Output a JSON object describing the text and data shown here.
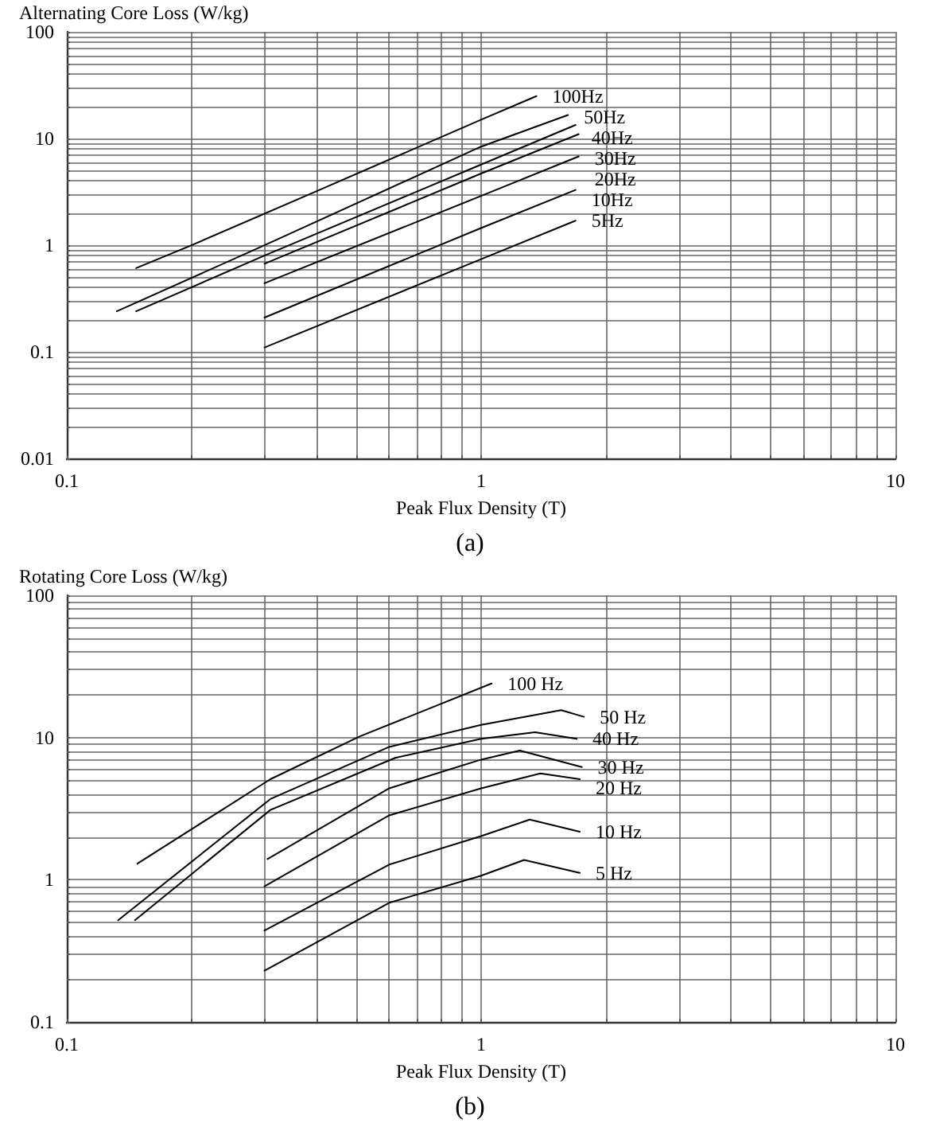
{
  "chart_data": [
    {
      "type": "line",
      "ylabel": "Alternating Core Loss (W/kg)",
      "xlabel": "Peak Flux Density (T)",
      "annotations": [
        "(a)"
      ],
      "log": "xy",
      "grid": true,
      "marker": "none",
      "line_style": "solid",
      "xlim": [
        0.1,
        10
      ],
      "ylim": [
        0.01,
        100
      ],
      "xticks": [
        0.1,
        {
          "value": 0.2,
          "label": null
        },
        {
          "value": 0.3,
          "label": null
        },
        {
          "value": 0.4,
          "label": null
        },
        {
          "value": 0.5,
          "label": null
        },
        {
          "value": 0.6,
          "label": null
        },
        {
          "value": 0.7,
          "label": null
        },
        {
          "value": 0.8,
          "label": null
        },
        {
          "value": 0.9,
          "label": null
        },
        1,
        {
          "value": 2,
          "label": null
        },
        {
          "value": 3,
          "label": null
        },
        {
          "value": 4,
          "label": null
        },
        {
          "value": 5,
          "label": null
        },
        {
          "value": 6,
          "label": null
        },
        {
          "value": 7,
          "label": null
        },
        {
          "value": 8,
          "label": null
        },
        {
          "value": 9,
          "label": null
        },
        10
      ],
      "yticks": [
        0.01,
        {
          "value": 0.02,
          "label": null
        },
        {
          "value": 0.03,
          "label": null
        },
        {
          "value": 0.04,
          "label": null
        },
        {
          "value": 0.05,
          "label": null
        },
        {
          "value": 0.06,
          "label": null
        },
        {
          "value": 0.07,
          "label": null
        },
        {
          "value": 0.08,
          "label": null
        },
        {
          "value": 0.09,
          "label": null
        },
        0.1,
        {
          "value": 0.2,
          "label": null
        },
        {
          "value": 0.3,
          "label": null
        },
        {
          "value": 0.4,
          "label": null
        },
        {
          "value": 0.5,
          "label": null
        },
        {
          "value": 0.6,
          "label": null
        },
        {
          "value": 0.7,
          "label": null
        },
        {
          "value": 0.8,
          "label": null
        },
        {
          "value": 0.9,
          "label": null
        },
        1,
        {
          "value": 2,
          "label": null
        },
        {
          "value": 3,
          "label": null
        },
        {
          "value": 4,
          "label": null
        },
        {
          "value": 5,
          "label": null
        },
        {
          "value": 6,
          "label": null
        },
        {
          "value": 7,
          "label": null
        },
        {
          "value": 8,
          "label": null
        },
        {
          "value": 9,
          "label": null
        },
        10,
        {
          "value": 20,
          "label": null
        },
        {
          "value": 30,
          "label": null
        },
        {
          "value": 40,
          "label": null
        },
        {
          "value": 50,
          "label": null
        },
        {
          "value": 60,
          "label": null
        },
        {
          "value": 70,
          "label": null
        },
        {
          "value": 80,
          "label": null
        },
        {
          "value": 90,
          "label": null
        },
        100
      ],
      "series": [
        {
          "name": "100Hz",
          "color": "#000000",
          "x": [
            0.147,
            0.2,
            0.4,
            1,
            1.36
          ],
          "values": [
            0.61,
            1,
            3.2,
            15,
            25
          ]
        },
        {
          "name": "50Hz",
          "color": "#000000",
          "x": [
            0.132,
            0.3,
            1,
            1.62
          ],
          "values": [
            0.24,
            1,
            8.4,
            16.6
          ]
        },
        {
          "name": "40Hz",
          "color": "#000000",
          "x": [
            0.147,
            0.3,
            1,
            1.69
          ],
          "values": [
            0.24,
            0.8,
            5.7,
            13.4
          ]
        },
        {
          "name": "30Hz",
          "color": "#000000",
          "x": [
            0.3,
            1,
            1.72
          ],
          "values": [
            0.67,
            4.7,
            11
          ]
        },
        {
          "name": "20Hz",
          "color": "#000000",
          "x": [
            0.3,
            1,
            1.72
          ],
          "values": [
            0.44,
            2.9,
            6.8
          ]
        },
        {
          "name": "10Hz",
          "color": "#000000",
          "x": [
            0.3,
            1,
            1.69
          ],
          "values": [
            0.21,
            1.45,
            3.3
          ]
        },
        {
          "name": "5Hz",
          "color": "#000000",
          "x": [
            0.3,
            1,
            1.69
          ],
          "values": [
            0.11,
            0.74,
            1.7
          ]
        }
      ]
    },
    {
      "type": "line",
      "ylabel": "Rotating Core Loss (W/kg)",
      "xlabel": "Peak Flux Density (T)",
      "annotations": [
        "(b)"
      ],
      "log": "xy",
      "grid": true,
      "marker": "none",
      "line_style": "solid",
      "xlim": [
        0.1,
        10
      ],
      "ylim": [
        0.1,
        100
      ],
      "xticks": [
        0.1,
        {
          "value": 0.2,
          "label": null
        },
        {
          "value": 0.3,
          "label": null
        },
        {
          "value": 0.4,
          "label": null
        },
        {
          "value": 0.5,
          "label": null
        },
        {
          "value": 0.6,
          "label": null
        },
        {
          "value": 0.7,
          "label": null
        },
        {
          "value": 0.8,
          "label": null
        },
        {
          "value": 0.9,
          "label": null
        },
        1,
        {
          "value": 2,
          "label": null
        },
        {
          "value": 3,
          "label": null
        },
        {
          "value": 4,
          "label": null
        },
        {
          "value": 5,
          "label": null
        },
        {
          "value": 6,
          "label": null
        },
        {
          "value": 7,
          "label": null
        },
        {
          "value": 8,
          "label": null
        },
        {
          "value": 9,
          "label": null
        },
        10
      ],
      "yticks": [
        0.1,
        {
          "value": 0.2,
          "label": null
        },
        {
          "value": 0.3,
          "label": null
        },
        {
          "value": 0.4,
          "label": null
        },
        {
          "value": 0.5,
          "label": null
        },
        {
          "value": 0.6,
          "label": null
        },
        {
          "value": 0.7,
          "label": null
        },
        {
          "value": 0.8,
          "label": null
        },
        {
          "value": 0.9,
          "label": null
        },
        1,
        {
          "value": 2,
          "label": null
        },
        {
          "value": 3,
          "label": null
        },
        {
          "value": 4,
          "label": null
        },
        {
          "value": 5,
          "label": null
        },
        {
          "value": 6,
          "label": null
        },
        {
          "value": 7,
          "label": null
        },
        {
          "value": 8,
          "label": null
        },
        {
          "value": 9,
          "label": null
        },
        10,
        {
          "value": 20,
          "label": null
        },
        {
          "value": 30,
          "label": null
        },
        {
          "value": 40,
          "label": null
        },
        {
          "value": 50,
          "label": null
        },
        {
          "value": 60,
          "label": null
        },
        {
          "value": 70,
          "label": null
        },
        {
          "value": 80,
          "label": null
        },
        {
          "value": 90,
          "label": null
        },
        100
      ],
      "series": [
        {
          "name": "100 Hz",
          "color": "#000000",
          "x": [
            0.148,
            0.31,
            0.51,
            1.06
          ],
          "values": [
            1.3,
            5.1,
            10.2,
            24
          ]
        },
        {
          "name": "50 Hz",
          "color": "#000000",
          "x": [
            0.133,
            0.31,
            0.6,
            1,
            1.56,
            1.77
          ],
          "values": [
            0.52,
            3.7,
            8.6,
            12.3,
            15.6,
            14
          ]
        },
        {
          "name": "40 Hz",
          "color": "#000000",
          "x": [
            0.146,
            0.31,
            0.62,
            1,
            1.35,
            1.7
          ],
          "values": [
            0.52,
            3.1,
            7.2,
            9.8,
            10.9,
            9.8
          ]
        },
        {
          "name": "30 Hz",
          "color": "#000000",
          "x": [
            0.305,
            0.6,
            1,
            1.24,
            1.75
          ],
          "values": [
            1.4,
            4.4,
            7,
            8.1,
            6.2
          ]
        },
        {
          "name": "20 Hz",
          "color": "#000000",
          "x": [
            0.3,
            0.6,
            1,
            1.39,
            1.73
          ],
          "values": [
            0.9,
            2.84,
            4.4,
            5.6,
            5.1
          ]
        },
        {
          "name": "10 Hz",
          "color": "#000000",
          "x": [
            0.3,
            0.6,
            1,
            1.31,
            1.73
          ],
          "values": [
            0.44,
            1.28,
            2.03,
            2.65,
            2.18
          ]
        },
        {
          "name": "5 Hz",
          "color": "#000000",
          "x": [
            0.3,
            0.6,
            1,
            1.27,
            1.73
          ],
          "values": [
            0.23,
            0.69,
            1.07,
            1.38,
            1.12
          ]
        }
      ]
    }
  ]
}
